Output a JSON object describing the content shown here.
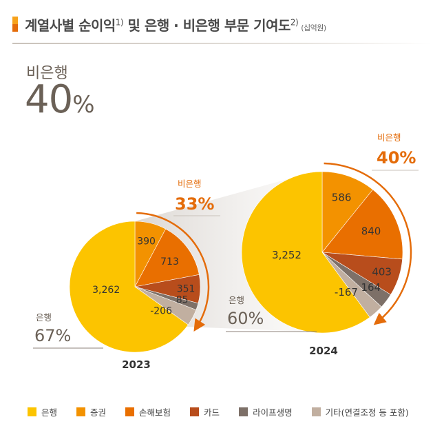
{
  "header": {
    "title": "계열사별 순이익",
    "sup1": "1)",
    "title_mid": " 및 은행 · 비은행 부문 기여도",
    "sup2": "2)",
    "unit": "(십억원)"
  },
  "summary": {
    "label": "비은행",
    "value": "40",
    "percent_sign": "%"
  },
  "colors": {
    "bank": "#fcc400",
    "securities": "#f39200",
    "insurance": "#e96f00",
    "card": "#b84d1c",
    "life": "#7d7068",
    "other": "#c1afa0",
    "accent": "#e46c0a"
  },
  "chart_data": [
    {
      "type": "pie",
      "year": "2023",
      "categories": [
        "은행",
        "증권",
        "손해보험",
        "카드",
        "라이프생명",
        "기타(연결조정 등 포함)"
      ],
      "values": [
        3262,
        390,
        713,
        351,
        85,
        -206
      ],
      "labels": [
        "3,262",
        "390",
        "713",
        "351",
        "85",
        "-206"
      ],
      "bank_share": {
        "label": "은행",
        "value": "67%"
      },
      "nonbank_share": {
        "label": "비은행",
        "value": "33%"
      }
    },
    {
      "type": "pie",
      "year": "2024",
      "categories": [
        "은행",
        "증권",
        "손해보험",
        "카드",
        "라이프생명",
        "기타(연결조정 등 포함)"
      ],
      "values": [
        3252,
        586,
        840,
        403,
        164,
        -167
      ],
      "labels": [
        "3,252",
        "586",
        "840",
        "403",
        "164",
        "-167"
      ],
      "bank_share": {
        "label": "은행",
        "value": "60%"
      },
      "nonbank_share": {
        "label": "비은행",
        "value": "40%"
      }
    }
  ],
  "legend": [
    {
      "label": "은행",
      "color": "#fcc400"
    },
    {
      "label": "증권",
      "color": "#f39200"
    },
    {
      "label": "손해보험",
      "color": "#e96f00"
    },
    {
      "label": "카드",
      "color": "#b84d1c"
    },
    {
      "label": "라이프생명",
      "color": "#7d7068"
    },
    {
      "label": "기타(연결조정 등 포함)",
      "color": "#c1afa0"
    }
  ]
}
